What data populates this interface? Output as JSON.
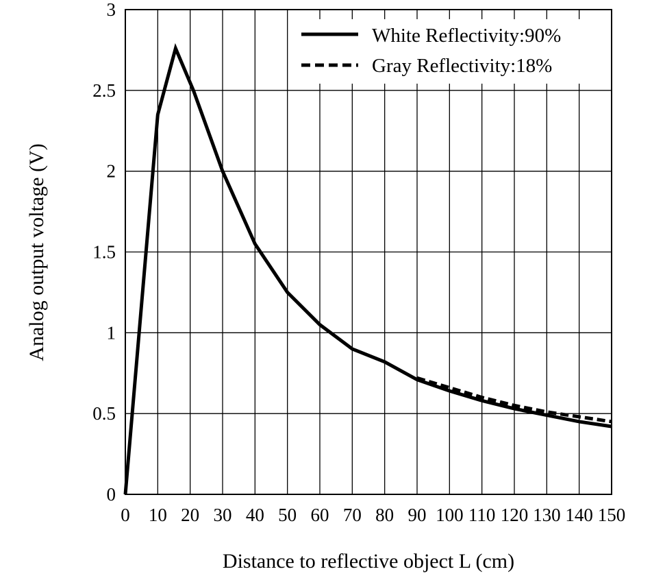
{
  "chart_data": {
    "type": "line",
    "title": "",
    "xlabel": "Distance to reflective object L (cm)",
    "ylabel": "Analog output voltage (V)",
    "xlim": [
      0,
      150
    ],
    "ylim": [
      0,
      3
    ],
    "x_ticks": [
      "0",
      "10",
      "20",
      "30",
      "40",
      "50",
      "60",
      "70",
      "80",
      "90",
      "100",
      "110",
      "120",
      "130",
      "140",
      "150"
    ],
    "y_ticks": [
      "0",
      "0.5",
      "1",
      "1.5",
      "2",
      "2.5",
      "3"
    ],
    "grid": true,
    "legend_position": "top-right",
    "series": [
      {
        "name": "White Reflectivity:90%",
        "style": "solid",
        "color": "#000000",
        "x": [
          0,
          10,
          15.5,
          21,
          30,
          40,
          50,
          60,
          70,
          80,
          90,
          100,
          110,
          120,
          130,
          140,
          150
        ],
        "y": [
          0,
          2.35,
          2.76,
          2.5,
          2.0,
          1.55,
          1.25,
          1.05,
          0.9,
          0.82,
          0.71,
          0.64,
          0.58,
          0.53,
          0.49,
          0.45,
          0.42
        ]
      },
      {
        "name": "Gray Reflectivity:18%",
        "style": "dashed",
        "color": "#000000",
        "x": [
          90,
          100,
          110,
          120,
          130,
          140,
          150
        ],
        "y": [
          0.72,
          0.66,
          0.6,
          0.55,
          0.51,
          0.48,
          0.45
        ]
      }
    ]
  }
}
